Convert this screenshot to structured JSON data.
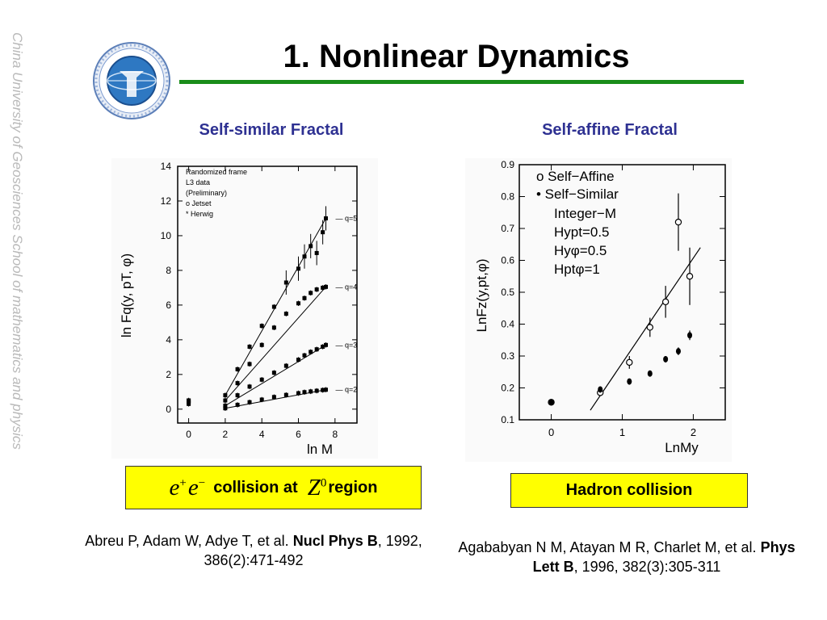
{
  "sidebar": {
    "text": "China University of Geosciences School of mathematics and physics"
  },
  "header": {
    "title": "1. Nonlinear Dynamics"
  },
  "colors": {
    "title_rule": "#1a8d1a",
    "subtitle": "#2e3192",
    "caption_fill": "#ffff00"
  },
  "left_panel": {
    "subtitle": "Self-similar Fractal",
    "caption": {
      "particle1_base": "e",
      "particle1_sup": "+",
      "particle2_base": "e",
      "particle2_sup": "−",
      "middle": "collision at",
      "boson_base": "Z",
      "boson_sup": "0",
      "end": "region"
    },
    "reference": {
      "authors": "Abreu P, Adam W, Adye T, et al.",
      "journal": "Nucl Phys B",
      "details": ", 1992, 386(2):471-492"
    }
  },
  "right_panel": {
    "subtitle": "Self-affine Fractal",
    "caption": "Hadron collision",
    "reference": {
      "authors": "Agababyan N M, Atayan M R, Charlet M, et al.",
      "journal": "Phys Lett B",
      "details": ", 1996, 382(3):305-311"
    }
  },
  "chart_data": [
    {
      "type": "scatter",
      "ylabel": "ln Fq(y, pT, φ)",
      "xlabel": "ln M",
      "xlim": [
        -0.6,
        9.2
      ],
      "ylim": [
        -0.8,
        14
      ],
      "xticks": [
        "0",
        "2",
        "4",
        "6",
        "8"
      ],
      "yticks": [
        "0",
        "2",
        "4",
        "6",
        "8",
        "10",
        "12",
        "14"
      ],
      "legend": [
        "Randomized frame",
        "L3 data",
        "(Preliminary)",
        "o Jetset",
        "* Herwig"
      ],
      "q_labels": [
        "q=5",
        "q=4",
        "q=3",
        "q=2"
      ],
      "series": [
        {
          "name": "q=2",
          "x": [
            0,
            2,
            2.67,
            3.33,
            4,
            4.67,
            5.33,
            6,
            6.33,
            6.67,
            7,
            7.33,
            7.5
          ],
          "y": [
            0.3,
            0.05,
            0.25,
            0.4,
            0.55,
            0.7,
            0.82,
            0.92,
            0.98,
            1.02,
            1.06,
            1.1,
            1.12
          ]
        },
        {
          "name": "q=3",
          "x": [
            0,
            2,
            2.67,
            3.33,
            4,
            4.67,
            5.33,
            6,
            6.33,
            6.67,
            7,
            7.33,
            7.5
          ],
          "y": [
            0.4,
            0.2,
            0.8,
            1.3,
            1.7,
            2.1,
            2.5,
            2.85,
            3.1,
            3.3,
            3.45,
            3.6,
            3.7
          ]
        },
        {
          "name": "q=4",
          "x": [
            0,
            2,
            2.67,
            3.33,
            4,
            4.67,
            5.33,
            6,
            6.33,
            6.67,
            7,
            7.33,
            7.5
          ],
          "y": [
            0.5,
            0.5,
            1.5,
            2.6,
            3.7,
            4.7,
            5.5,
            6.1,
            6.4,
            6.7,
            6.9,
            7.0,
            7.05
          ]
        },
        {
          "name": "q=5",
          "x": [
            0,
            2,
            2.67,
            3.33,
            4,
            4.67,
            5.33,
            6,
            6.33,
            6.67,
            7,
            7.33,
            7.5
          ],
          "y": [
            0.5,
            0.8,
            2.3,
            3.6,
            4.8,
            5.9,
            7.3,
            8.1,
            8.8,
            9.4,
            9.0,
            10.2,
            11.0
          ]
        }
      ]
    },
    {
      "type": "scatter",
      "ylabel": "LnFz(y,pt,φ)",
      "xlabel": "LnMy",
      "xlim": [
        -0.45,
        2.45
      ],
      "ylim": [
        0.1,
        0.9
      ],
      "xticks": [
        "0",
        "1",
        "2"
      ],
      "yticks": [
        "0.1",
        "0.2",
        "0.3",
        "0.4",
        "0.5",
        "0.6",
        "0.7",
        "0.8",
        "0.9"
      ],
      "legend": [
        "o Self−Affine",
        "• Self−Similar"
      ],
      "annotations": [
        "Integer−M",
        "Hypt=0.5",
        "Hyφ=0.5",
        "Hptφ=1"
      ],
      "series": [
        {
          "name": "Self−Affine",
          "marker": "open",
          "x": [
            0,
            0.69,
            1.1,
            1.39,
            1.61,
            1.79,
            1.95
          ],
          "y": [
            0.155,
            0.185,
            0.28,
            0.39,
            0.47,
            0.72,
            0.55
          ],
          "err": [
            0.005,
            0.01,
            0.02,
            0.03,
            0.05,
            0.09,
            0.09
          ]
        },
        {
          "name": "Self−Similar",
          "marker": "filled",
          "x": [
            0,
            0.69,
            1.1,
            1.39,
            1.61,
            1.79,
            1.95
          ],
          "y": [
            0.155,
            0.195,
            0.22,
            0.245,
            0.29,
            0.315,
            0.365
          ],
          "err": [
            0.005,
            0.006,
            0.006,
            0.008,
            0.01,
            0.012,
            0.015
          ]
        }
      ],
      "fit_line": {
        "x": [
          0.55,
          2.1
        ],
        "y": [
          0.13,
          0.64
        ]
      }
    }
  ]
}
